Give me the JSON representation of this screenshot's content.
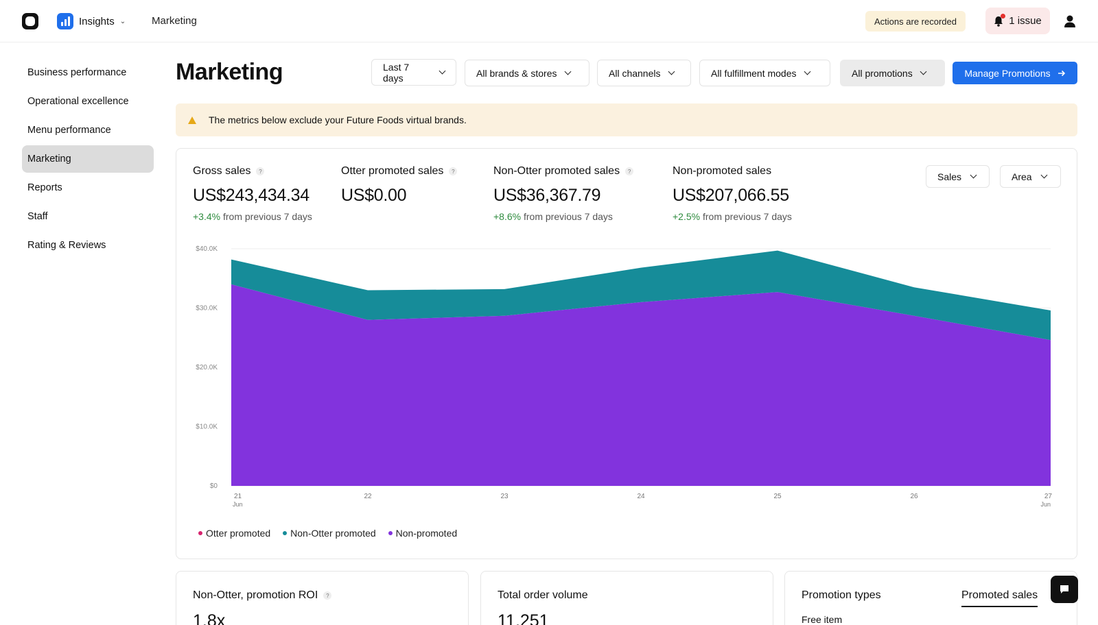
{
  "topbar": {
    "app_name": "Insights",
    "breadcrumb": "Marketing",
    "recorded_label": "Actions are recorded",
    "issue_label": "1 issue"
  },
  "sidebar": {
    "items": [
      {
        "label": "Business performance",
        "active": false
      },
      {
        "label": "Operational excellence",
        "active": false
      },
      {
        "label": "Menu performance",
        "active": false
      },
      {
        "label": "Marketing",
        "active": true
      },
      {
        "label": "Reports",
        "active": false
      },
      {
        "label": "Staff",
        "active": false
      },
      {
        "label": "Rating & Reviews",
        "active": false
      }
    ]
  },
  "header": {
    "title": "Marketing",
    "filters": {
      "date": "Last 7 days",
      "brands": "All brands & stores",
      "channels": "All channels",
      "fulfillment": "All fulfillment modes",
      "promotions": "All promotions"
    },
    "manage_button": "Manage Promotions"
  },
  "banner": {
    "text": "The metrics below exclude your Future Foods virtual brands."
  },
  "metrics": [
    {
      "label": "Gross sales",
      "value": "US$243,434.34",
      "delta": "+3.4%",
      "delta_text": "from previous 7 days",
      "help": true
    },
    {
      "label": "Otter promoted sales",
      "value": "US$0.00",
      "delta": "",
      "delta_text": "",
      "help": true
    },
    {
      "label": "Non-Otter promoted sales",
      "value": "US$36,367.79",
      "delta": "+8.6%",
      "delta_text": "from previous 7 days",
      "help": true
    },
    {
      "label": "Non-promoted sales",
      "value": "US$207,066.55",
      "delta": "+2.5%",
      "delta_text": "from previous 7 days",
      "help": false
    }
  ],
  "chart_controls": {
    "metric": "Sales",
    "type": "Area"
  },
  "colors": {
    "accent": "#1f6feb",
    "otter_promoted": "#d6246e",
    "non_otter_promoted": "#168c99",
    "non_promoted": "#8233dd",
    "positive": "#2e8b3e"
  },
  "chart_data": {
    "type": "area",
    "stacked": true,
    "categories": [
      "21",
      "22",
      "23",
      "24",
      "25",
      "26",
      "27"
    ],
    "category_sublabels": [
      "Jun",
      "",
      "",
      "",
      "",
      "",
      "Jun"
    ],
    "yticks": [
      "$0",
      "$10.0K",
      "$20.0K",
      "$30.0K",
      "$40.0K"
    ],
    "ylim": [
      0,
      40000
    ],
    "series": [
      {
        "name": "Non-promoted",
        "values": [
          34000,
          28000,
          28700,
          31000,
          32700,
          28700,
          24600
        ]
      },
      {
        "name": "Non-Otter promoted",
        "values": [
          4200,
          5000,
          4500,
          5800,
          7000,
          4800,
          5000
        ]
      },
      {
        "name": "Otter promoted",
        "values": [
          0,
          0,
          0,
          0,
          0,
          0,
          0
        ]
      }
    ],
    "legend": [
      "Otter promoted",
      "Non-Otter promoted",
      "Non-promoted"
    ],
    "legend_position": "bottom-left",
    "grid": true
  },
  "bottom_cards": {
    "roi": {
      "title": "Non-Otter, promotion ROI",
      "value": "1.8x"
    },
    "orders": {
      "title": "Total order volume",
      "value": "11,251"
    },
    "promo": {
      "title": "Promotion types",
      "tab": "Promoted sales",
      "first_item": "Free item"
    }
  }
}
